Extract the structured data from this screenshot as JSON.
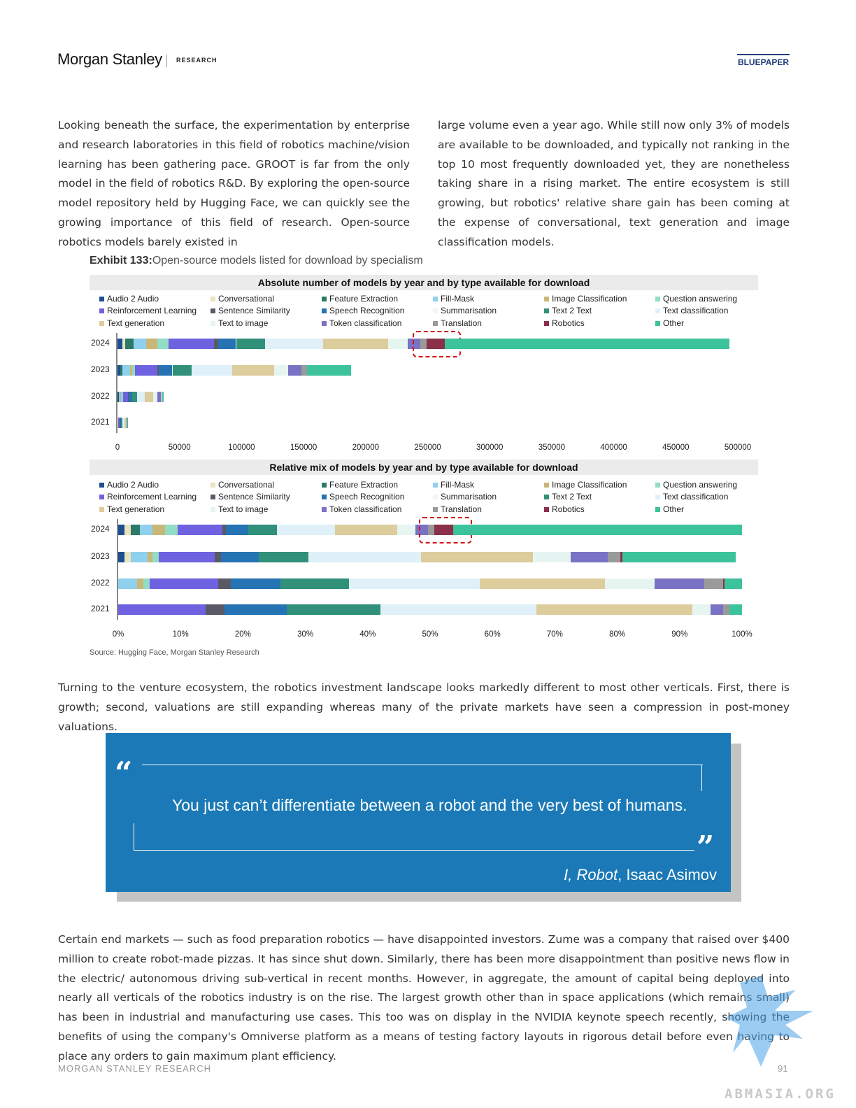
{
  "header": {
    "brand": "Morgan Stanley",
    "section": "RESEARCH",
    "badge": "BLUEPAPER"
  },
  "intro": {
    "left": "Looking beneath the surface, the experimentation by enterprise and research laboratories in this field of robotics machine/vision learning has been gathering pace. GROOT is far from the only model in the field of robotics R&D. By exploring the open-source model repository held by Hugging Face, we can quickly see the growing importance of this field of research. Open-source robotics models barely existed in",
    "right": "large volume even a year ago. While still now only 3% of models are available to be downloaded, and typically not ranking in the top 10 most frequently downloaded yet, they are nonetheless taking share in a rising market. The entire ecosystem is still growing, but robotics' relative share gain has been coming at the expense of conversational, text generation and image classification models."
  },
  "exhibit": {
    "number": "Exhibit 133:",
    "title": "Open-source models listed for download by specialism",
    "source": "Source: Hugging Face, Morgan Stanley Research"
  },
  "legend": [
    {
      "label": "Audio 2 Audio",
      "color": "#1d4f91"
    },
    {
      "label": "Conversational",
      "color": "#e9e3c2"
    },
    {
      "label": "Feature Extraction",
      "color": "#2b7a67"
    },
    {
      "label": "Fill-Mask",
      "color": "#8fd0ee"
    },
    {
      "label": "Image Classification",
      "color": "#c9b777"
    },
    {
      "label": "Question answering",
      "color": "#93dcc6"
    },
    {
      "label": "Reinforcement Learning",
      "color": "#6e62e0"
    },
    {
      "label": "Sentence Similarity",
      "color": "#5a5a66"
    },
    {
      "label": "Speech Recognition",
      "color": "#2673b4"
    },
    {
      "label": "Summarisation",
      "color": "#f1f7f2"
    },
    {
      "label": "Text 2 Text",
      "color": "#30907a"
    },
    {
      "label": "Text classification",
      "color": "#dff0f9"
    },
    {
      "label": "Text generation",
      "color": "#ddcc9c"
    },
    {
      "label": "Text to image",
      "color": "#e7f5f2"
    },
    {
      "label": "Token classification",
      "color": "#7a72c4"
    },
    {
      "label": "Translation",
      "color": "#9a9a9a"
    },
    {
      "label": "Robotics",
      "color": "#8a3049"
    },
    {
      "label": "Other",
      "color": "#3cc39b"
    }
  ],
  "chart_data": [
    {
      "type": "bar",
      "stacked": true,
      "orientation": "horizontal",
      "title": "Absolute number of models by year and by type available for download",
      "categories": [
        "2024",
        "2023",
        "2022",
        "2021"
      ],
      "xlim": [
        0,
        500000
      ],
      "xticks": [
        "0",
        "50000",
        "100000",
        "150000",
        "200000",
        "250000",
        "300000",
        "350000",
        "400000",
        "450000",
        "500000"
      ],
      "legend": "top",
      "highlight": "Robotics, 2024",
      "series": [
        {
          "name": "Audio 2 Audio",
          "values": [
            4000,
            2000,
            1000,
            200
          ]
        },
        {
          "name": "Conversational",
          "values": [
            2000,
            500,
            500,
            100
          ]
        },
        {
          "name": "Feature Extraction",
          "values": [
            7000,
            1500,
            500,
            100
          ]
        },
        {
          "name": "Fill-Mask",
          "values": [
            10000,
            6000,
            1500,
            200
          ]
        },
        {
          "name": "Image Classification",
          "values": [
            9000,
            2000,
            500,
            100
          ]
        },
        {
          "name": "Question answering",
          "values": [
            9000,
            2000,
            500,
            100
          ]
        },
        {
          "name": "Reinforcement Learning",
          "values": [
            37000,
            18000,
            4000,
            1000
          ]
        },
        {
          "name": "Sentence Similarity",
          "values": [
            3000,
            1000,
            500,
            200
          ]
        },
        {
          "name": "Speech Recognition",
          "values": [
            14000,
            11000,
            3000,
            700
          ]
        },
        {
          "name": "Summarisation",
          "values": [
            1000,
            500,
            0,
            0
          ]
        },
        {
          "name": "Text 2 Text",
          "values": [
            23000,
            15000,
            4000,
            1000
          ]
        },
        {
          "name": "Text classification",
          "values": [
            47000,
            33000,
            6000,
            1800
          ]
        },
        {
          "name": "Text generation",
          "values": [
            52000,
            34000,
            7000,
            1800
          ]
        },
        {
          "name": "Text to image",
          "values": [
            16000,
            11000,
            3000,
            200
          ]
        },
        {
          "name": "Token classification",
          "values": [
            10000,
            11000,
            3000,
            200
          ]
        },
        {
          "name": "Translation",
          "values": [
            5000,
            4000,
            800,
            100
          ]
        },
        {
          "name": "Robotics",
          "values": [
            15000,
            500,
            0,
            0
          ]
        },
        {
          "name": "Other",
          "values": [
            229000,
            35000,
            1200,
            200
          ]
        }
      ]
    },
    {
      "type": "bar",
      "stacked": true,
      "orientation": "horizontal",
      "title": "Relative mix of models by year and by type available for download",
      "categories": [
        "2024",
        "2023",
        "2022",
        "2021"
      ],
      "xlim": [
        0,
        100
      ],
      "unit": "%",
      "xticks": [
        "0%",
        "10%",
        "20%",
        "30%",
        "40%",
        "50%",
        "60%",
        "70%",
        "80%",
        "90%",
        "100%"
      ],
      "legend": "top",
      "highlight": "Robotics, 2024",
      "series": [
        {
          "name": "Audio 2 Audio",
          "values": [
            1,
            1,
            0,
            0
          ]
        },
        {
          "name": "Conversational",
          "values": [
            1,
            1,
            0,
            0
          ]
        },
        {
          "name": "Feature Extraction",
          "values": [
            1.5,
            0,
            0,
            0
          ]
        },
        {
          "name": "Fill-Mask",
          "values": [
            2,
            2.7,
            3,
            0
          ]
        },
        {
          "name": "Image Classification",
          "values": [
            2,
            0.8,
            1,
            0
          ]
        },
        {
          "name": "Question answering",
          "values": [
            2,
            1,
            1,
            0
          ]
        },
        {
          "name": "Reinforcement Learning",
          "values": [
            7.2,
            9,
            11,
            14
          ]
        },
        {
          "name": "Sentence Similarity",
          "values": [
            0.6,
            1,
            2,
            3
          ]
        },
        {
          "name": "Speech Recognition",
          "values": [
            3.5,
            6,
            8,
            10
          ]
        },
        {
          "name": "Summarisation",
          "values": [
            0,
            0,
            0,
            0
          ]
        },
        {
          "name": "Text 2 Text",
          "values": [
            4.6,
            8,
            11,
            15
          ]
        },
        {
          "name": "Text classification",
          "values": [
            9.3,
            18,
            21,
            25
          ]
        },
        {
          "name": "Text generation",
          "values": [
            10,
            18,
            20,
            25
          ]
        },
        {
          "name": "Text to image",
          "values": [
            3,
            6,
            8,
            3
          ]
        },
        {
          "name": "Token classification",
          "values": [
            2,
            6,
            8,
            2
          ]
        },
        {
          "name": "Translation",
          "values": [
            1,
            2,
            3,
            1
          ]
        },
        {
          "name": "Robotics",
          "values": [
            3,
            0.3,
            0.2,
            0
          ]
        },
        {
          "name": "Other",
          "values": [
            46.3,
            18.2,
            2.8,
            2
          ]
        }
      ]
    }
  ],
  "body": {
    "venture": "Turning to the venture ecosystem, the robotics investment landscape looks markedly different to most other verticals. First, there is growth; second, valuations are still expanding whereas many of the private markets have seen a compression in post-money valuations.",
    "closing": "Certain end markets — such as food preparation robotics — have disappointed investors. Zume was a company that raised over $400 million to create robot-made pizzas. It has since shut down. Similarly, there has been more disappointment than positive news flow in the electric/ autonomous driving sub-vertical in recent months. However, in aggregate, the amount of capital being deployed into nearly all verticals of the robotics industry is on the rise. The largest growth other than in space applications (which remains small) has been in industrial and manufacturing use cases. This too was on display in the NVIDIA keynote speech recently, showing the benefits of using the company's Omniverse platform as a means of testing factory layouts in rigorous detail before even having to place any orders to gain maximum plant efficiency."
  },
  "quote": {
    "open_mark": "“",
    "close_mark": "”",
    "text": "You just can’t differentiate between a robot and the very best of humans.",
    "source_title": "I, Robot",
    "source_author": ", Isaac Asimov"
  },
  "footer": {
    "label": "MORGAN STANLEY RESEARCH",
    "page": "91"
  },
  "watermark": {
    "text": "ABMASIA.ORG"
  }
}
